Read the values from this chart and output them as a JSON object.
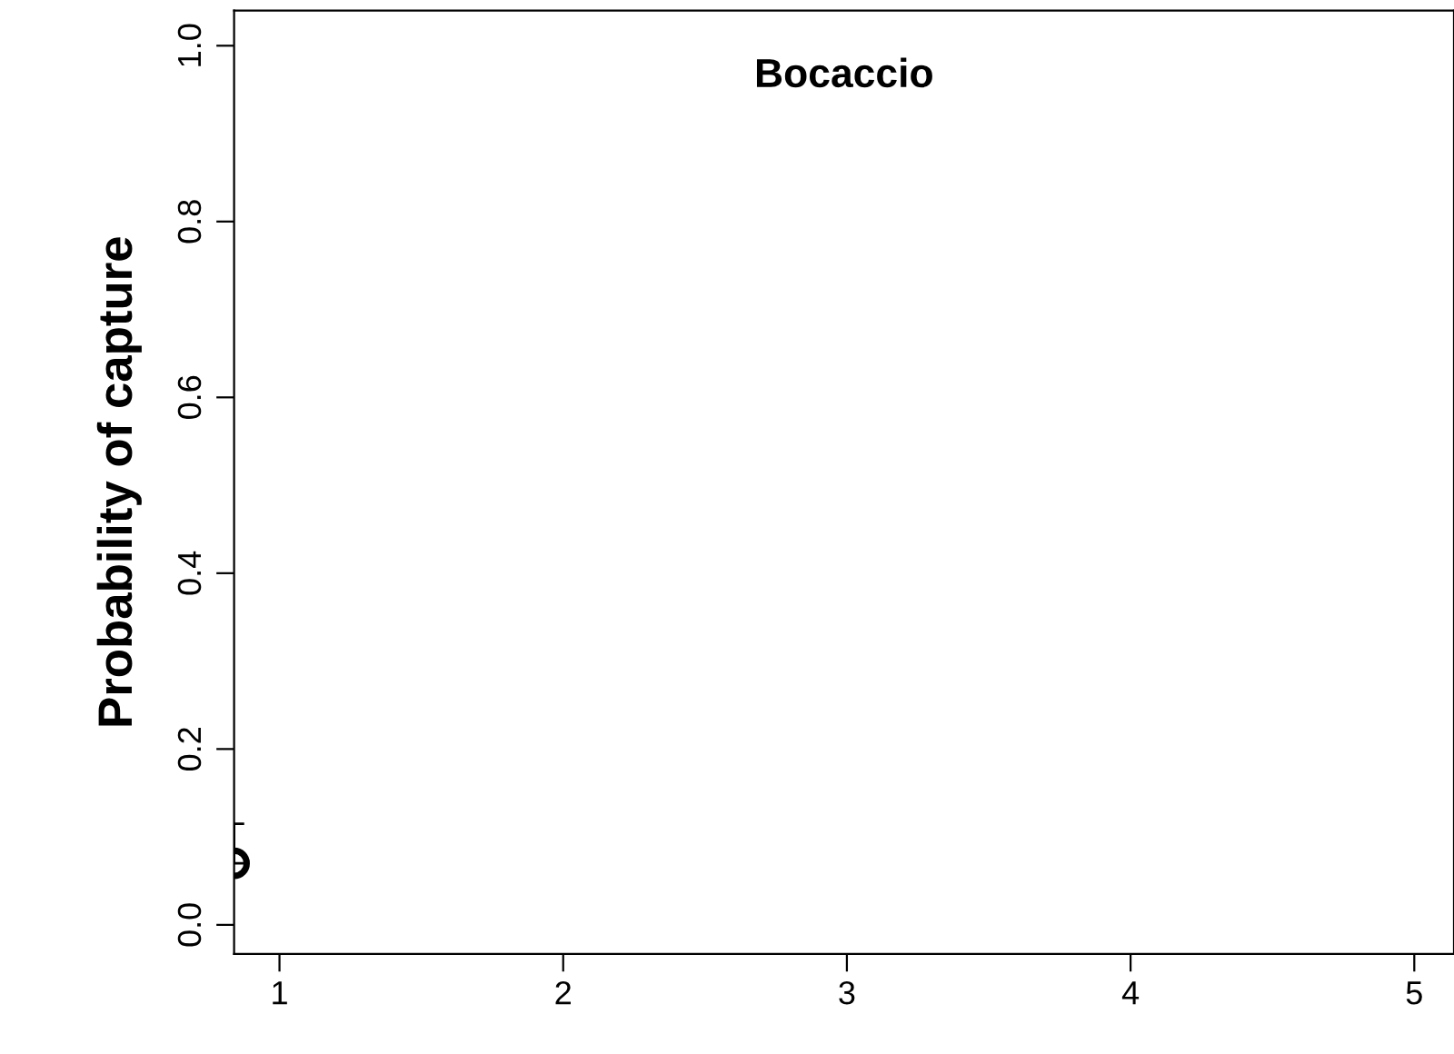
{
  "chart_data": {
    "type": "scatter",
    "title": "Bocaccio",
    "ylabel": "Probability of capture",
    "x": [
      0.84
    ],
    "series": [
      {
        "color": "#000000",
        "values": [
          0.07
        ],
        "errors": [
          [
            0.07,
            0.115
          ]
        ]
      }
    ],
    "xlim": [
      0.84,
      5.14
    ],
    "xticks": [
      1,
      2,
      3,
      4,
      5
    ],
    "ylim": [
      -0.033,
      1.04
    ],
    "yticks": [
      {
        "value": 0,
        "label": "0.0"
      },
      0.2,
      0.4,
      0.6,
      0.8,
      {
        "value": 1,
        "label": "1.0"
      }
    ],
    "marker": "circle",
    "grid": false,
    "legend": false
  }
}
